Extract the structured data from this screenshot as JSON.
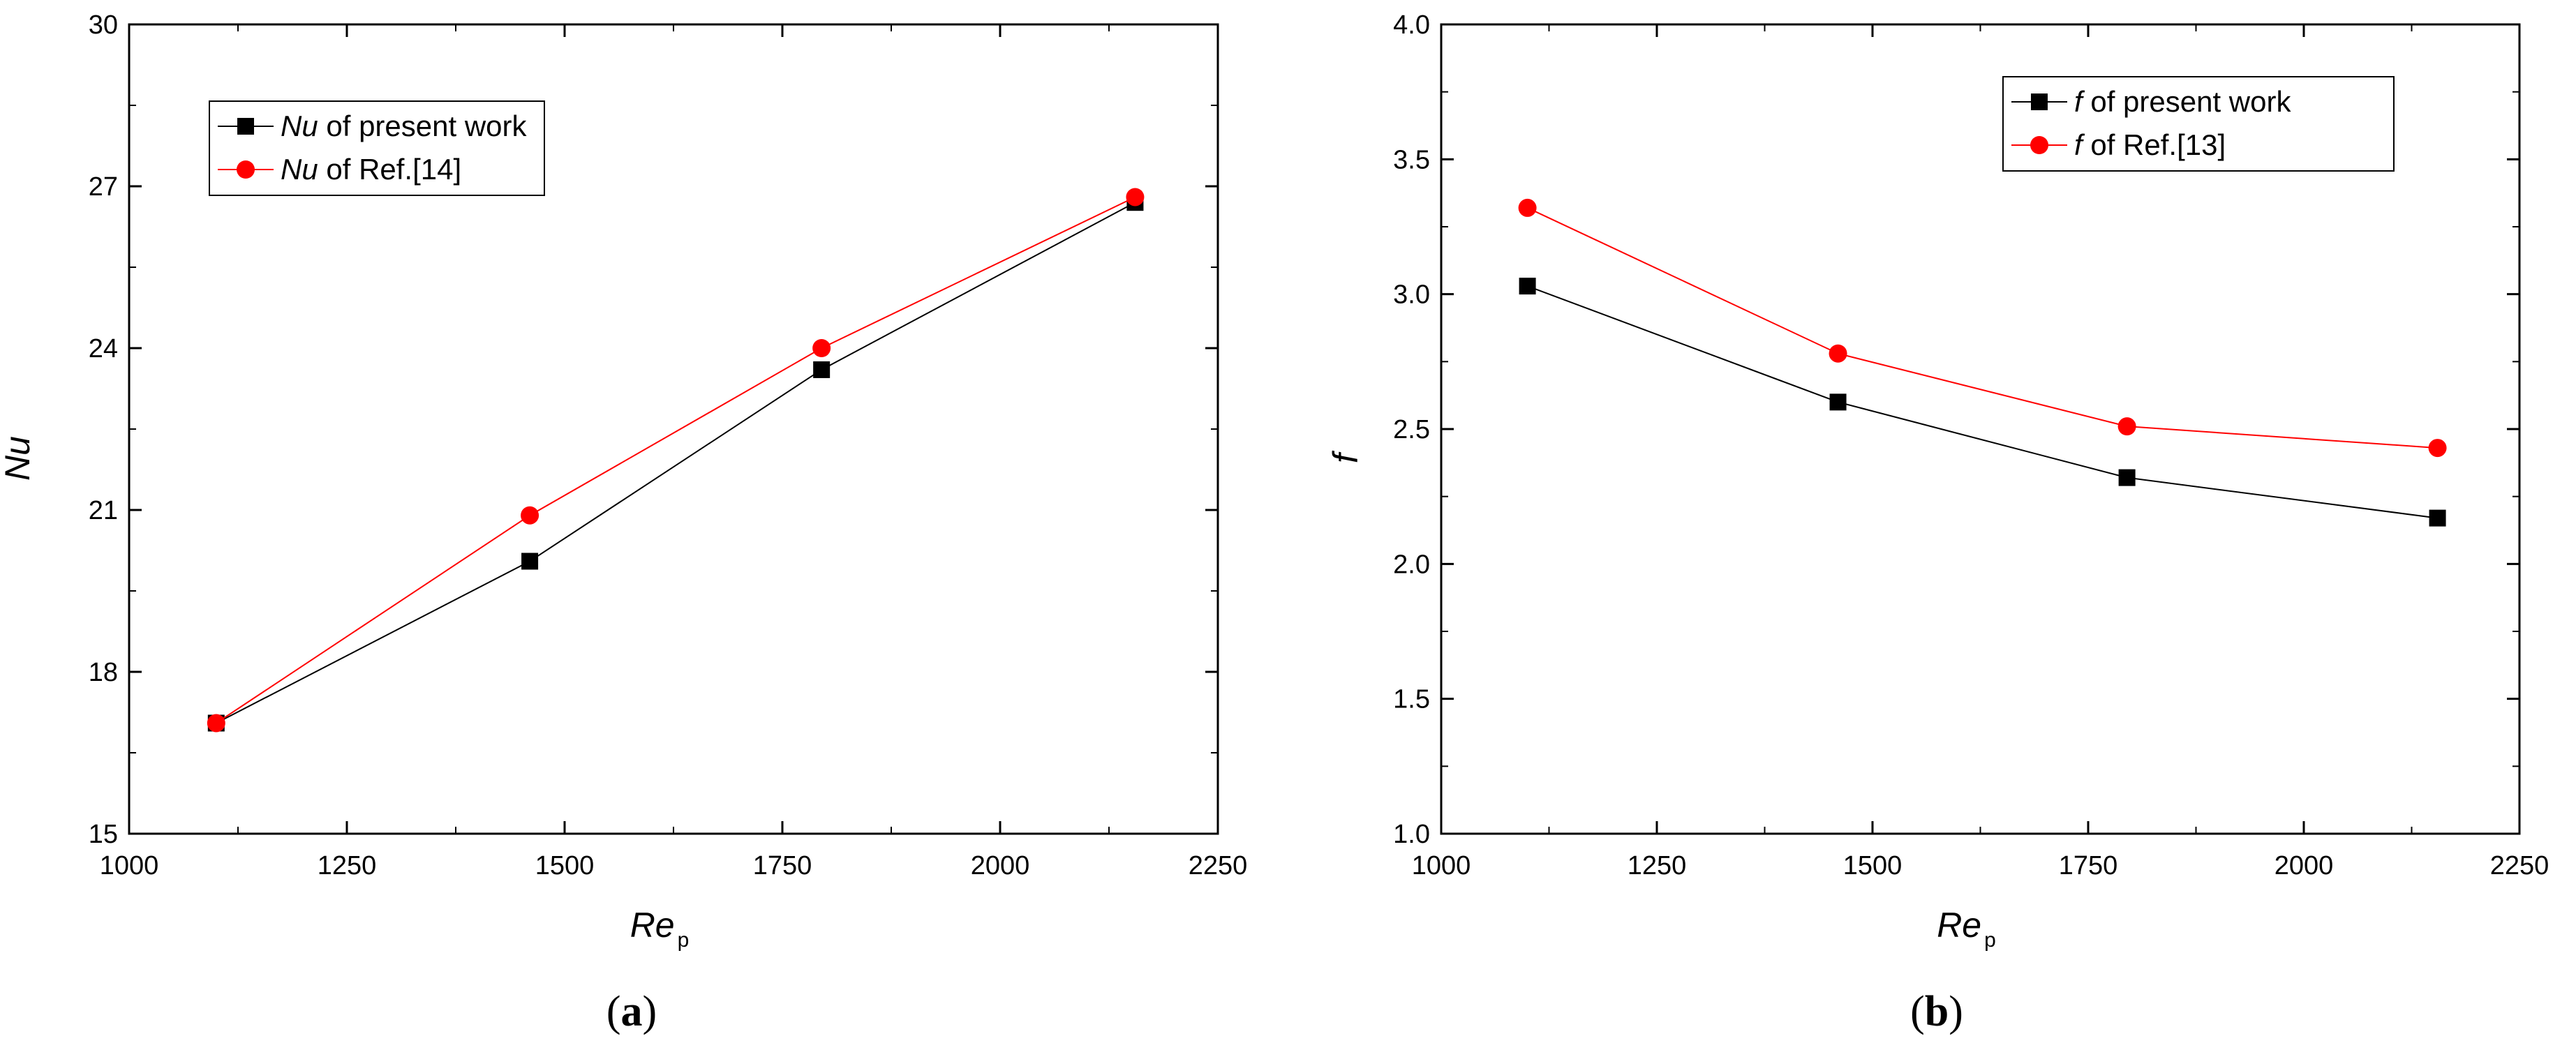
{
  "chart_data": [
    {
      "type": "line",
      "panel_label": "a",
      "xlabel": "Re",
      "xlabel_sub": "p",
      "ylabel": "Nu",
      "xlim": [
        1000,
        2250
      ],
      "ylim": [
        15,
        30
      ],
      "xticks": [
        1000,
        1250,
        1500,
        1750,
        2000,
        2250
      ],
      "yticks": [
        15,
        18,
        21,
        24,
        27,
        30
      ],
      "grid": false,
      "legend_position": "top-left",
      "series": [
        {
          "name_italic": "Nu",
          "name_rest": " of present work",
          "color": "#000000",
          "marker": "square",
          "x": [
            1100,
            1460,
            1795,
            2155
          ],
          "y": [
            17.05,
            20.05,
            23.6,
            26.7
          ]
        },
        {
          "name_italic": "Nu",
          "name_rest": " of Ref.[14]",
          "color": "#ff0000",
          "marker": "circle",
          "x": [
            1100,
            1460,
            1795,
            2155
          ],
          "y": [
            17.05,
            20.9,
            24.0,
            26.8
          ]
        }
      ]
    },
    {
      "type": "line",
      "panel_label": "b",
      "xlabel": "Re",
      "xlabel_sub": "p",
      "ylabel": "f",
      "xlim": [
        1000,
        2250
      ],
      "ylim": [
        1.0,
        4.0
      ],
      "xticks": [
        1000,
        1250,
        1500,
        1750,
        2000,
        2250
      ],
      "yticks": [
        1.0,
        1.5,
        2.0,
        2.5,
        3.0,
        3.5,
        4.0
      ],
      "grid": false,
      "legend_position": "top-right",
      "series": [
        {
          "name_italic": "f",
          "name_rest": " of present work",
          "color": "#000000",
          "marker": "square",
          "x": [
            1100,
            1460,
            1795,
            2155
          ],
          "y": [
            3.03,
            2.6,
            2.32,
            2.17
          ]
        },
        {
          "name_italic": "f",
          "name_rest": " of Ref.[13]",
          "color": "#ff0000",
          "marker": "circle",
          "x": [
            1100,
            1460,
            1795,
            2155
          ],
          "y": [
            3.32,
            2.78,
            2.51,
            2.43
          ]
        }
      ]
    }
  ]
}
